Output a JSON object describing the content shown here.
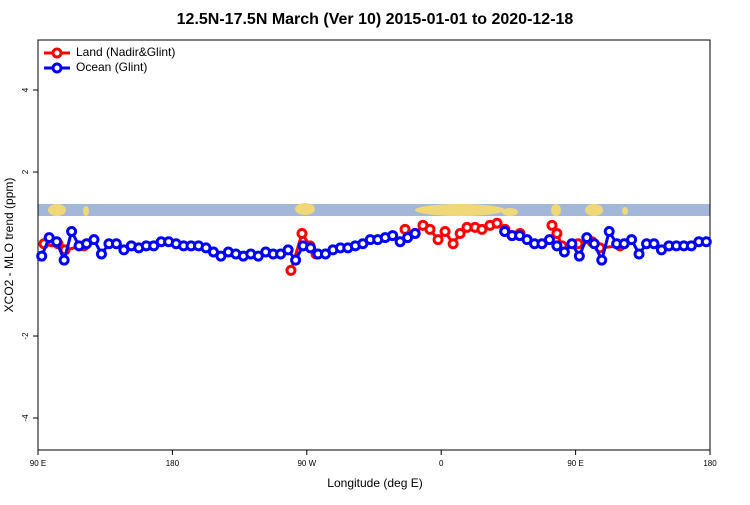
{
  "chart_data": {
    "type": "line",
    "title": "12.5N-17.5N March (Ver 10)   2015-01-01 to 2020-12-18",
    "xlabel": "Longitude (deg E)",
    "ylabel": "XCO2 - MLO trend (ppm)",
    "xlim": [
      90,
      540
    ],
    "xticks": [
      {
        "value": 90,
        "label": "90 E"
      },
      180,
      {
        "value": 270,
        "label": "90 W"
      },
      {
        "value": 360,
        "label": "0"
      },
      {
        "value": 450,
        "label": "90 E"
      },
      {
        "value": 540,
        "label": "180"
      }
    ],
    "ylim": [
      -4.78,
      5.22
    ],
    "yticks": [
      -4,
      -2,
      2,
      4
    ],
    "legend": "top-left",
    "series": [
      {
        "name": "Land (Nadir&Glint)",
        "color": "#ff0000",
        "x": [
          94.0,
          99.4,
          103.4,
          108.1,
          120.8,
          null,
          259.4,
          266.8,
          272.1,
          276.2,
          null,
          335.8,
          342.6,
          347.8,
          352.5,
          357.9,
          362.6,
          368.0,
          372.7,
          377.3,
          382.7,
          387.3,
          392.7,
          397.4,
          402.7,
          407.4,
          412.8,
          null,
          434.2,
          437.5,
          440.9,
          451.6,
          461.0,
          466.3,
          479.7
        ],
        "values": [
          0.25,
          0.3,
          0.25,
          0.1,
          0.2,
          null,
          -0.4,
          0.5,
          0.2,
          0.0,
          null,
          0.6,
          0.5,
          0.7,
          0.6,
          0.35,
          0.55,
          0.25,
          0.5,
          0.65,
          0.65,
          0.6,
          0.7,
          0.75,
          0.6,
          0.45,
          0.5,
          null,
          0.7,
          0.5,
          0.2,
          0.25,
          0.3,
          0.15,
          0.2
        ]
      },
      {
        "name": "Ocean (Glint)",
        "color": "#0000ff",
        "x": [
          92.5,
          97.5,
          102.5,
          107.5,
          112.5,
          117.5,
          122.5,
          127.5,
          132.5,
          137.5,
          142.5,
          147.5,
          152.5,
          157.5,
          162.5,
          167.5,
          172.5,
          177.5,
          182.5,
          187.5,
          192.5,
          197.5,
          202.5,
          207.5,
          212.5,
          217.5,
          222.5,
          227.5,
          232.5,
          237.5,
          242.5,
          247.5,
          252.5,
          257.5,
          262.5,
          267.5,
          272.5,
          277.5,
          282.5,
          287.5,
          292.5,
          297.5,
          302.5,
          307.5,
          312.5,
          317.5,
          322.5,
          327.5,
          332.5,
          337.5,
          342.5,
          347.5,
          352.5,
          357.5,
          362.5,
          367.5,
          372.5,
          377.5,
          382.5,
          387.5,
          392.5,
          397.5,
          402.5,
          407.5,
          412.5,
          417.5,
          422.5,
          427.5,
          432.5,
          437.5,
          442.5,
          447.5,
          452.5,
          457.5,
          462.5,
          467.5,
          472.5,
          477.5,
          482.5,
          487.5,
          492.5,
          497.5,
          502.5,
          507.5,
          512.5,
          517.5,
          522.5,
          527.5,
          532.5,
          537.5
        ],
        "values": [
          -0.05,
          0.4,
          0.3,
          -0.15,
          0.55,
          0.2,
          0.25,
          0.35,
          0.0,
          0.25,
          0.25,
          0.1,
          0.2,
          0.15,
          0.2,
          0.2,
          0.3,
          0.3,
          0.25,
          0.2,
          0.2,
          0.2,
          0.15,
          0.05,
          -0.05,
          0.05,
          0.0,
          -0.05,
          0.0,
          -0.05,
          0.05,
          0.0,
          0.0,
          0.1,
          -0.15,
          0.2,
          0.15,
          0.0,
          0.0,
          0.1,
          0.15,
          0.15,
          0.2,
          0.25,
          0.35,
          0.35,
          0.4,
          0.45,
          0.3,
          0.4,
          0.5,
          null,
          null,
          null,
          null,
          null,
          null,
          null,
          null,
          null,
          null,
          null,
          0.55,
          0.45,
          0.45,
          0.35,
          0.25,
          0.25,
          0.35,
          0.2,
          0.05,
          0.25,
          -0.05,
          0.4,
          0.25,
          -0.15,
          0.55,
          0.25,
          0.25,
          0.35,
          0.0,
          0.25,
          0.25,
          0.1,
          0.2,
          0.2,
          0.2,
          0.2,
          0.3,
          0.3
        ]
      }
    ]
  }
}
